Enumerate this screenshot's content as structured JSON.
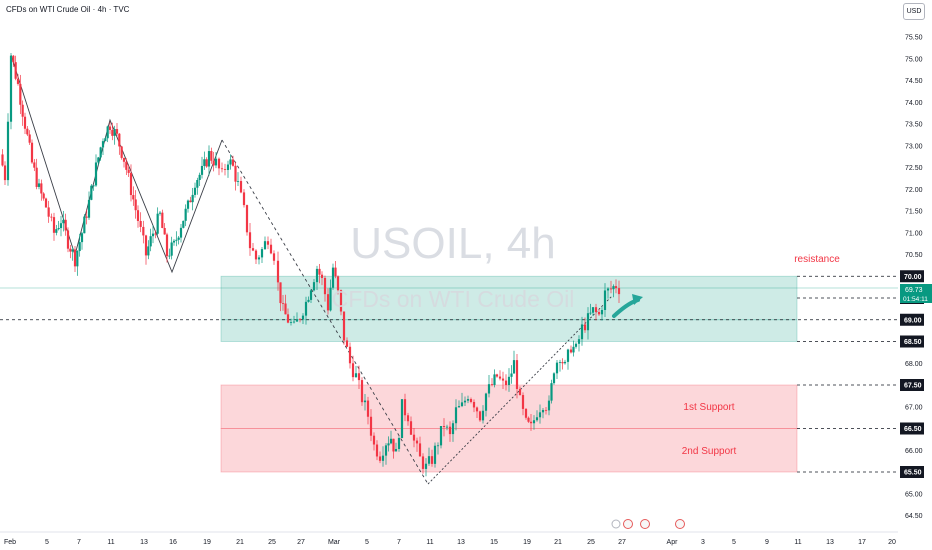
{
  "header": {
    "title": "CFDs on WTI Crude Oil · 4h · TVC",
    "currency": "USD"
  },
  "watermark": {
    "symbol": "USOIL, 4h",
    "description": "CFDs on WTI Crude Oil"
  },
  "labels": {
    "resistance": "resistance",
    "support1": "1st Support",
    "support2": "2nd Support"
  },
  "price_tag": {
    "price": "69.73",
    "countdown": "01:54:11"
  },
  "colors": {
    "bull": "#089981",
    "bear": "#f23645",
    "resistance_zone": "#089981",
    "support_zone": "#f23645",
    "label_red": "#f23645"
  },
  "chart_data": {
    "type": "candlestick",
    "title": "CFDs on WTI Crude Oil · 4h · TVC",
    "ylim": [
      64.5,
      75.5
    ],
    "y_ticks": [
      "75.50",
      "75.00",
      "74.50",
      "74.00",
      "73.50",
      "73.00",
      "72.50",
      "72.00",
      "71.50",
      "71.00",
      "70.50",
      "70.00",
      "69.50",
      "69.00",
      "68.50",
      "68.00",
      "67.50",
      "67.00",
      "66.50",
      "66.00",
      "65.50",
      "65.00",
      "64.50"
    ],
    "x_ticks": [
      "Feb",
      "5",
      "7",
      "11",
      "13",
      "16",
      "19",
      "21",
      "25",
      "27",
      "Mar",
      "5",
      "7",
      "11",
      "13",
      "15",
      "19",
      "21",
      "25",
      "27",
      "Apr",
      "3",
      "5",
      "9",
      "11",
      "13",
      "17",
      "20"
    ],
    "highlighted_levels": [
      "70.00",
      "69.50",
      "69.00",
      "68.50",
      "67.50",
      "66.50",
      "65.50"
    ],
    "last_price": 69.73,
    "zones": [
      {
        "name": "resistance",
        "from": 68.5,
        "to": 70.0
      },
      {
        "name": "1st Support",
        "from": 66.5,
        "to": 67.5
      },
      {
        "name": "2nd Support",
        "from": 65.5,
        "to": 66.5
      }
    ],
    "price_path": [
      [
        0,
        72.8
      ],
      [
        5,
        72.3
      ],
      [
        11,
        75.1
      ],
      [
        18,
        74.4
      ],
      [
        25,
        73.5
      ],
      [
        32,
        72.6
      ],
      [
        39,
        72.0
      ],
      [
        46,
        71.6
      ],
      [
        54,
        71.0
      ],
      [
        61,
        71.3
      ],
      [
        68,
        70.8
      ],
      [
        75,
        70.4
      ],
      [
        82,
        71.0
      ],
      [
        89,
        71.7
      ],
      [
        96,
        72.5
      ],
      [
        103,
        73.2
      ],
      [
        110,
        73.5
      ],
      [
        117,
        73.2
      ],
      [
        124,
        72.7
      ],
      [
        131,
        72.0
      ],
      [
        138,
        71.3
      ],
      [
        146,
        70.5
      ],
      [
        153,
        71.0
      ],
      [
        160,
        71.4
      ],
      [
        167,
        70.5
      ],
      [
        174,
        70.7
      ],
      [
        181,
        71.2
      ],
      [
        188,
        71.6
      ],
      [
        195,
        72.2
      ],
      [
        202,
        72.4
      ],
      [
        209,
        72.8
      ],
      [
        216,
        72.6
      ],
      [
        222,
        72.3
      ],
      [
        228,
        72.7
      ],
      [
        233,
        72.5
      ],
      [
        238,
        72.1
      ],
      [
        244,
        71.5
      ],
      [
        250,
        70.7
      ],
      [
        256,
        70.4
      ],
      [
        262,
        70.6
      ],
      [
        268,
        70.9
      ],
      [
        274,
        70.5
      ],
      [
        278,
        69.8
      ],
      [
        283,
        69.2
      ],
      [
        288,
        69.0
      ],
      [
        294,
        68.8
      ],
      [
        300,
        69.1
      ],
      [
        306,
        69.4
      ],
      [
        311,
        69.8
      ],
      [
        317,
        70.2
      ],
      [
        322,
        69.9
      ],
      [
        328,
        69.3
      ],
      [
        333,
        70.2
      ],
      [
        338,
        69.6
      ],
      [
        344,
        68.6
      ],
      [
        350,
        68.0
      ],
      [
        356,
        67.7
      ],
      [
        362,
        67.2
      ],
      [
        368,
        66.8
      ],
      [
        374,
        66.1
      ],
      [
        380,
        65.9
      ],
      [
        386,
        66.2
      ],
      [
        391,
        66.3
      ],
      [
        396,
        65.9
      ],
      [
        402,
        67.0
      ],
      [
        408,
        66.8
      ],
      [
        414,
        66.2
      ],
      [
        420,
        65.8
      ],
      [
        426,
        65.6
      ],
      [
        432,
        65.8
      ],
      [
        438,
        66.2
      ],
      [
        444,
        66.6
      ],
      [
        450,
        66.3
      ],
      [
        456,
        66.9
      ],
      [
        462,
        67.0
      ],
      [
        468,
        67.3
      ],
      [
        474,
        67.1
      ],
      [
        480,
        66.8
      ],
      [
        486,
        67.3
      ],
      [
        492,
        67.5
      ],
      [
        497,
        67.7
      ],
      [
        503,
        67.5
      ],
      [
        509,
        67.6
      ],
      [
        514,
        68.0
      ],
      [
        520,
        67.1
      ],
      [
        526,
        66.6
      ],
      [
        531,
        66.5
      ],
      [
        537,
        66.9
      ],
      [
        543,
        67.1
      ],
      [
        549,
        67.0
      ],
      [
        554,
        67.9
      ],
      [
        560,
        68.2
      ],
      [
        565,
        67.9
      ],
      [
        571,
        68.4
      ],
      [
        576,
        68.3
      ],
      [
        582,
        68.8
      ],
      [
        588,
        69.0
      ],
      [
        593,
        69.2
      ],
      [
        599,
        69.1
      ],
      [
        605,
        69.6
      ],
      [
        611,
        69.7
      ],
      [
        616,
        69.8
      ],
      [
        619,
        69.73
      ]
    ]
  }
}
